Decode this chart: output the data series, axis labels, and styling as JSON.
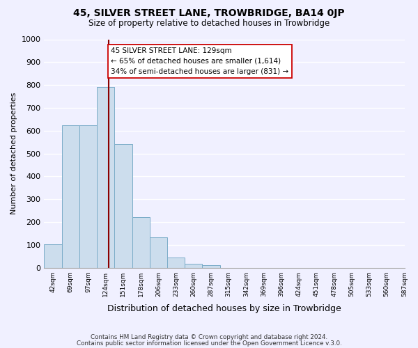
{
  "title": "45, SILVER STREET LANE, TROWBRIDGE, BA14 0JP",
  "subtitle": "Size of property relative to detached houses in Trowbridge",
  "xlabel": "Distribution of detached houses by size in Trowbridge",
  "ylabel": "Number of detached properties",
  "footer_line1": "Contains HM Land Registry data © Crown copyright and database right 2024.",
  "footer_line2": "Contains public sector information licensed under the Open Government Licence v.3.0.",
  "tick_labels": [
    "42sqm",
    "69sqm",
    "97sqm",
    "124sqm",
    "151sqm",
    "178sqm",
    "206sqm",
    "233sqm",
    "260sqm",
    "287sqm",
    "315sqm",
    "342sqm",
    "369sqm",
    "396sqm",
    "424sqm",
    "451sqm",
    "478sqm",
    "505sqm",
    "533sqm",
    "560sqm",
    "587sqm"
  ],
  "bar_heights": [
    103,
    625,
    625,
    790,
    540,
    220,
    133,
    45,
    18,
    10,
    0,
    0,
    0,
    0,
    0,
    0,
    0,
    0,
    0,
    0
  ],
  "bar_color": "#ccdded",
  "bar_edgecolor": "#7aacc8",
  "property_line_bar_index": 3.19,
  "property_line_color": "#8b0000",
  "ylim": [
    0,
    1000
  ],
  "yticks": [
    0,
    100,
    200,
    300,
    400,
    500,
    600,
    700,
    800,
    900,
    1000
  ],
  "annotation_title": "45 SILVER STREET LANE: 129sqm",
  "annotation_line1": "← 65% of detached houses are smaller (1,614)",
  "annotation_line2": "34% of semi-detached houses are larger (831) →",
  "annotation_box_color": "#ffffff",
  "annotation_box_edgecolor": "#cc0000",
  "background_color": "#f0f0ff",
  "grid_color": "#ffffff"
}
